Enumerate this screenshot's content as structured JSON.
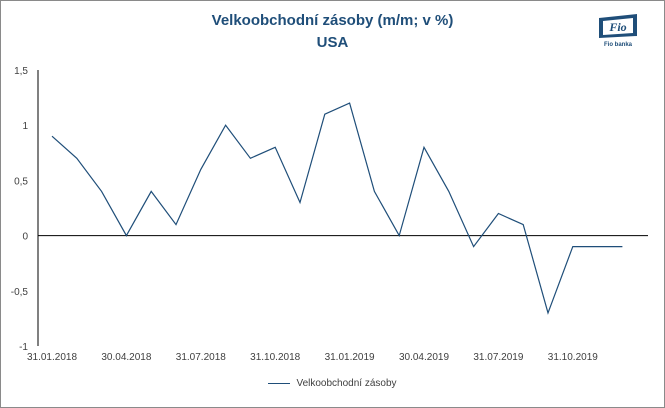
{
  "header": {
    "title": "Velkoobchodní zásoby (m/m; v %)",
    "subtitle": "USA"
  },
  "logo": {
    "text": "Fio",
    "caption": "Fio banka"
  },
  "colors": {
    "line": "#1f4e79",
    "title": "#1f4e79",
    "axis": "#000000",
    "frame": "#8a8a8a"
  },
  "chart_data": {
    "type": "line",
    "title": "Velkoobchodní zásoby (m/m; v %)",
    "subtitle": "USA",
    "xlabel": "",
    "ylabel": "",
    "ylim": [
      -1,
      1.5
    ],
    "yticks": [
      1.5,
      1,
      0.5,
      0,
      -0.5,
      -1
    ],
    "ytick_labels": [
      "1,5",
      "1",
      "0,5",
      "0",
      "-0,5",
      "-1"
    ],
    "x": [
      "2018-01-31",
      "2018-02-28",
      "2018-03-31",
      "2018-04-30",
      "2018-05-31",
      "2018-06-30",
      "2018-07-31",
      "2018-08-31",
      "2018-09-30",
      "2018-10-31",
      "2018-11-30",
      "2018-12-31",
      "2019-01-31",
      "2019-02-28",
      "2019-03-31",
      "2019-04-30",
      "2019-05-31",
      "2019-06-30",
      "2019-07-31",
      "2019-08-31",
      "2019-09-30",
      "2019-10-31",
      "2019-11-30",
      "2019-12-31"
    ],
    "xtick_labels": [
      "31.01.2018",
      "30.04.2018",
      "31.07.2018",
      "31.10.2018",
      "31.01.2019",
      "30.04.2019",
      "31.07.2019",
      "31.10.2019"
    ],
    "xtick_index": [
      0,
      3,
      6,
      9,
      12,
      15,
      18,
      21
    ],
    "series": [
      {
        "name": "Velkoobchodní zásoby",
        "values": [
          0.9,
          0.7,
          0.4,
          0.0,
          0.4,
          0.1,
          0.6,
          1.0,
          0.7,
          0.8,
          0.3,
          1.1,
          1.2,
          0.4,
          0.0,
          0.8,
          0.4,
          -0.1,
          0.2,
          0.1,
          -0.7,
          -0.1,
          -0.1,
          -0.1
        ]
      }
    ],
    "grid": false,
    "legend": "bottom"
  }
}
